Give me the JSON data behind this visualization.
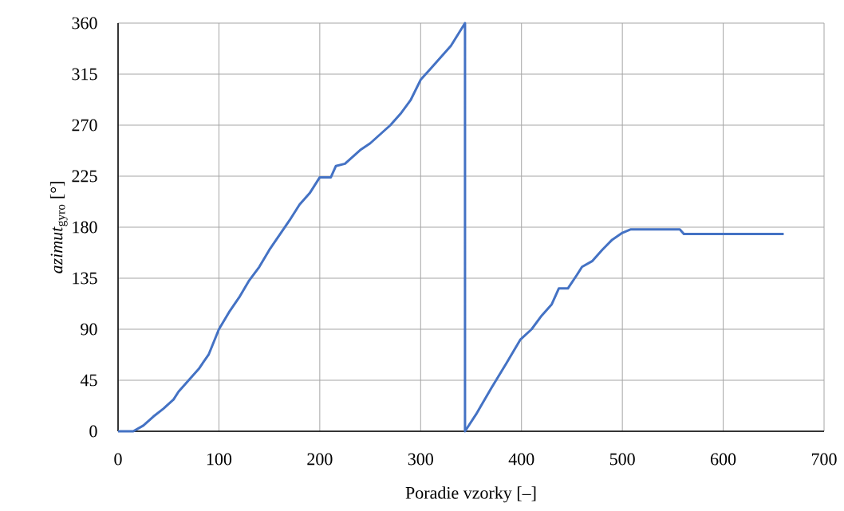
{
  "chart_data": {
    "type": "line",
    "xlabel": "Poradie vzorky [–]",
    "ylabel": "*azimut*$_{gyro}$ [°]",
    "xlim": [
      0,
      700
    ],
    "xticks": [
      0,
      100,
      200,
      300,
      400,
      500,
      600,
      700
    ],
    "ylim": [
      0,
      360
    ],
    "yticks": [
      0,
      45,
      90,
      135,
      180,
      225,
      270,
      315,
      360
    ],
    "grid": true,
    "marker": "none",
    "line_style": "solid",
    "series": [
      {
        "color": "#4472c4",
        "x": [
          0,
          15,
          25,
          35,
          45,
          55,
          60,
          70,
          80,
          90,
          100,
          110,
          120,
          130,
          140,
          150,
          160,
          170,
          180,
          190,
          200,
          211,
          216,
          225,
          240,
          250,
          270,
          280,
          290,
          300,
          310,
          320,
          330,
          344,
          344,
          355,
          370,
          385,
          399,
          410,
          420,
          430,
          437,
          446,
          455,
          460,
          470,
          480,
          490,
          500,
          508,
          557,
          561,
          660
        ],
        "values": [
          0,
          0,
          5,
          13,
          20,
          28,
          35,
          45,
          55,
          68,
          90,
          105,
          118,
          133,
          145,
          160,
          173,
          186,
          200,
          210,
          224,
          224,
          234,
          236,
          248,
          254,
          270,
          280,
          292,
          310,
          320,
          330,
          340,
          360,
          0,
          15,
          38,
          60,
          81,
          90,
          102,
          112,
          126,
          126,
          138,
          145,
          150,
          160,
          169,
          175,
          178,
          178,
          174,
          174
        ]
      }
    ]
  }
}
